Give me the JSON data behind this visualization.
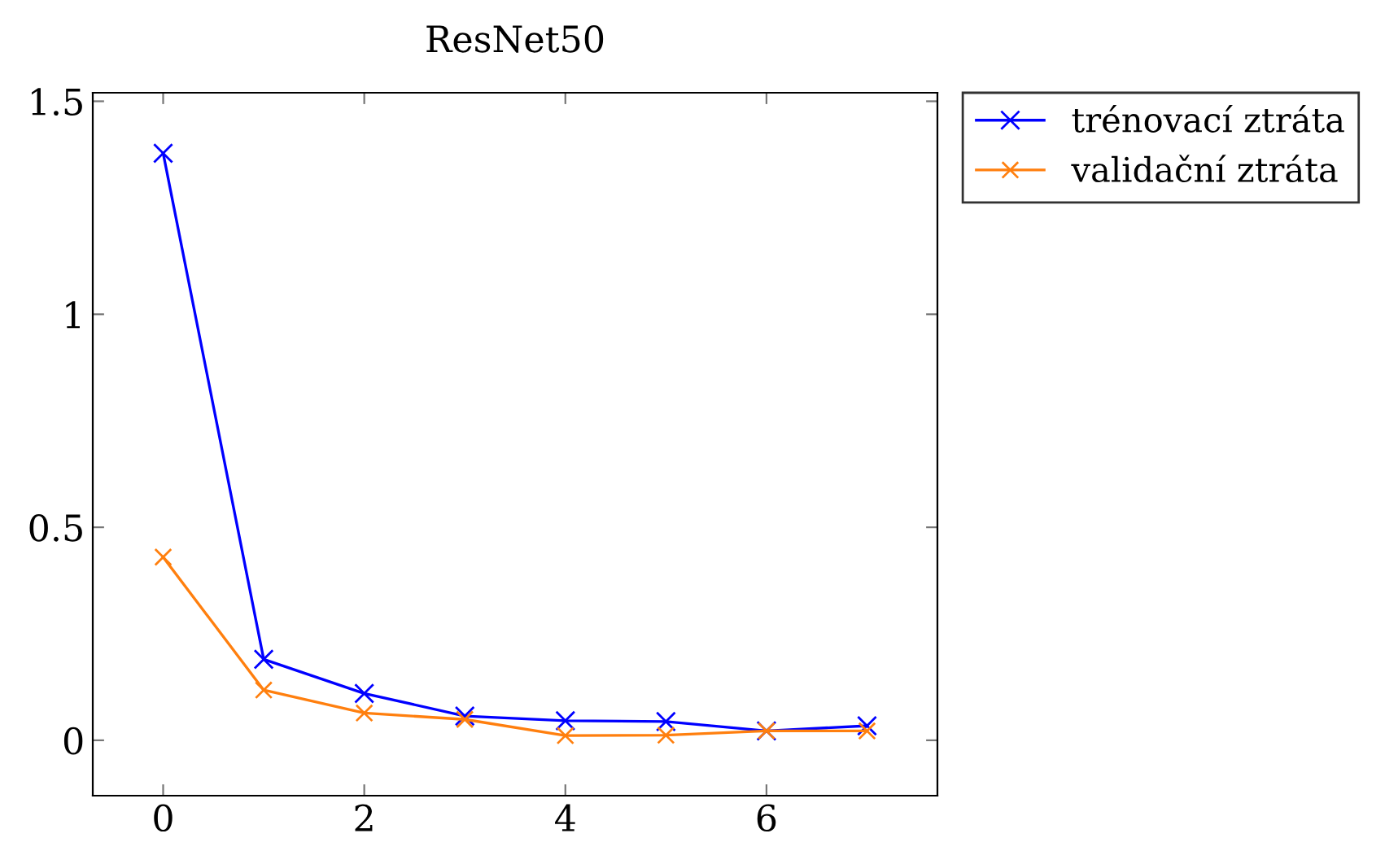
{
  "chart_data": {
    "type": "line",
    "title": "ResNet50",
    "x": [
      0,
      1,
      2,
      3,
      4,
      5,
      6,
      7
    ],
    "series": [
      {
        "name": "trénovací ztráta",
        "color": "#0000ff",
        "values": [
          1.378,
          0.19,
          0.11,
          0.057,
          0.046,
          0.044,
          0.022,
          0.034
        ]
      },
      {
        "name": "validační ztráta",
        "color": "#ff7f0e",
        "values": [
          0.43,
          0.118,
          0.064,
          0.049,
          0.011,
          0.012,
          0.022,
          0.022
        ]
      }
    ],
    "xlim": [
      -0.7,
      7.7
    ],
    "xticks": [
      0,
      2,
      4,
      6
    ],
    "ylim": [
      -0.13,
      1.52
    ],
    "yticks": [
      0,
      0.5,
      1,
      1.5
    ],
    "marker": "cross",
    "line_style": "solid",
    "grid": false,
    "legend": "top right"
  }
}
